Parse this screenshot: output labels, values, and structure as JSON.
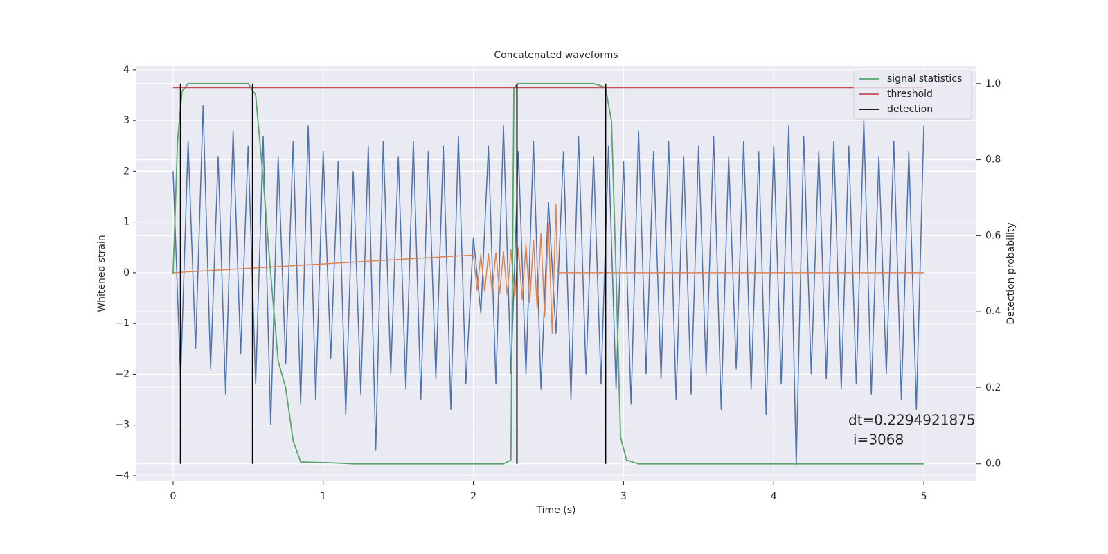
{
  "chart_data": {
    "type": "line",
    "title": "Concatenated waveforms",
    "xlabel": "Time (s)",
    "ylabel": "Whitened strain",
    "y2label": "Detection probability",
    "xlim": [
      -0.244,
      5.35
    ],
    "xticks": [
      0,
      1,
      2,
      3,
      4,
      5
    ],
    "ylim": [
      -4.11,
      4.08
    ],
    "yticks": [
      {
        "value": -4,
        "label": "−4"
      },
      {
        "value": -3,
        "label": "−3"
      },
      {
        "value": -2,
        "label": "−2"
      },
      {
        "value": -1,
        "label": "−1"
      },
      0,
      1,
      2,
      3,
      4
    ],
    "y2lim": [
      -0.046,
      1.047
    ],
    "y2ticks": [
      {
        "value": 0,
        "label": "0.0"
      },
      0.2,
      0.4,
      0.6,
      0.8,
      {
        "value": 1,
        "label": "1.0"
      }
    ],
    "grid": true,
    "legend": "upper right",
    "annotations": [
      "dt=0.2294921875",
      "i=3068"
    ],
    "waveforms": [
      {
        "color": "#4c72b0",
        "x": [
          0,
          0.05,
          0.1,
          0.15,
          0.2,
          0.25,
          0.3,
          0.35,
          0.4,
          0.45,
          0.5,
          0.55,
          0.6,
          0.65,
          0.7,
          0.75,
          0.8,
          0.85,
          0.9,
          0.95,
          1,
          1.05,
          1.1,
          1.15,
          1.2,
          1.25,
          1.3,
          1.35,
          1.4,
          1.45,
          1.5,
          1.55,
          1.6,
          1.65,
          1.7,
          1.75,
          1.8,
          1.85,
          1.9,
          1.95,
          2,
          2.05,
          2.1,
          2.15,
          2.2,
          2.25,
          2.3,
          2.35,
          2.4,
          2.45,
          2.5,
          2.55,
          2.6,
          2.65,
          2.7,
          2.75,
          2.8,
          2.85,
          2.9,
          2.95,
          3,
          3.05,
          3.1,
          3.15,
          3.2,
          3.25,
          3.3,
          3.35,
          3.4,
          3.45,
          3.5,
          3.55,
          3.6,
          3.65,
          3.7,
          3.75,
          3.8,
          3.85,
          3.9,
          3.95,
          4,
          4.05,
          4.1,
          4.15,
          4.2,
          4.25,
          4.3,
          4.35,
          4.4,
          4.45,
          4.5,
          4.55,
          4.6,
          4.65,
          4.7,
          4.75,
          4.8,
          4.85,
          4.9,
          4.95,
          5
        ],
        "values": [
          2.0,
          -2.1,
          2.6,
          -1.5,
          3.3,
          -1.9,
          2.3,
          -2.4,
          2.8,
          -1.6,
          2.5,
          -2.2,
          2.7,
          -3.0,
          2.3,
          -1.8,
          2.6,
          -2.6,
          2.9,
          -2.5,
          2.4,
          -1.7,
          2.2,
          -2.8,
          2.0,
          -2.4,
          2.5,
          -3.5,
          2.6,
          -2.0,
          2.3,
          -2.3,
          2.6,
          -2.5,
          2.4,
          -2.1,
          2.5,
          -2.7,
          2.7,
          -2.2,
          0.7,
          -0.8,
          2.5,
          -2.2,
          2.9,
          -2.0,
          2.4,
          -2.0,
          2.6,
          -2.3,
          1.4,
          -1.2,
          2.4,
          -2.5,
          2.7,
          -2.0,
          2.3,
          -2.2,
          2.5,
          -2.3,
          2.2,
          -2.6,
          2.8,
          -2.0,
          2.4,
          -2.1,
          2.6,
          -2.5,
          2.3,
          -2.4,
          2.5,
          -2.0,
          2.7,
          -2.7,
          2.3,
          -1.9,
          2.6,
          -2.3,
          2.4,
          -2.8,
          2.5,
          -2.2,
          2.9,
          -3.8,
          2.7,
          -2.0,
          2.4,
          -2.1,
          2.6,
          -2.3,
          2.5,
          -2.2,
          3.0,
          -2.4,
          2.3,
          -2.0,
          2.6,
          -2.5,
          2.4,
          -2.7,
          2.9
        ]
      },
      {
        "color": "#dd8452",
        "x": [
          0,
          2.0,
          2.025,
          2.05,
          2.075,
          2.1,
          2.125,
          2.15,
          2.175,
          2.2,
          2.225,
          2.25,
          2.275,
          2.3,
          2.325,
          2.35,
          2.375,
          2.4,
          2.425,
          2.45,
          2.475,
          2.5,
          2.525,
          2.55,
          2.56,
          5
        ],
        "values": [
          0,
          0.35,
          -0.35,
          0.36,
          -0.37,
          0.38,
          -0.39,
          0.4,
          -0.41,
          0.42,
          -0.44,
          0.46,
          -0.48,
          0.5,
          -0.53,
          0.56,
          -0.6,
          0.65,
          -0.7,
          0.78,
          -0.88,
          1.0,
          -1.2,
          1.35,
          0,
          0
        ]
      }
    ],
    "series": [
      {
        "name": "signal statistics",
        "color": "#55a868",
        "axis": "y2",
        "x": [
          0,
          0.03,
          0.06,
          0.1,
          0.5,
          0.55,
          0.6,
          0.65,
          0.7,
          0.75,
          0.8,
          0.85,
          1.05,
          1.2,
          2.2,
          2.25,
          2.27,
          2.3,
          2.4,
          2.8,
          2.88,
          2.92,
          2.95,
          2.98,
          3.02,
          3.1,
          5
        ],
        "values": [
          0.5,
          0.85,
          0.98,
          1.0,
          1.0,
          0.97,
          0.75,
          0.5,
          0.27,
          0.2,
          0.06,
          0.005,
          0.003,
          0,
          0,
          0.01,
          0.99,
          1.0,
          1.0,
          1.0,
          0.99,
          0.9,
          0.5,
          0.07,
          0.01,
          0,
          0
        ]
      },
      {
        "name": "threshold",
        "color": "#c44e52",
        "axis": "y2",
        "x": [
          0,
          5
        ],
        "values": [
          0.99,
          0.99
        ]
      },
      {
        "name": "detection",
        "color": "#000000",
        "axis": "y2",
        "x": [
          0.05,
          0.53,
          2.29,
          2.88
        ],
        "ymin": 0,
        "ymax": 1
      }
    ]
  }
}
